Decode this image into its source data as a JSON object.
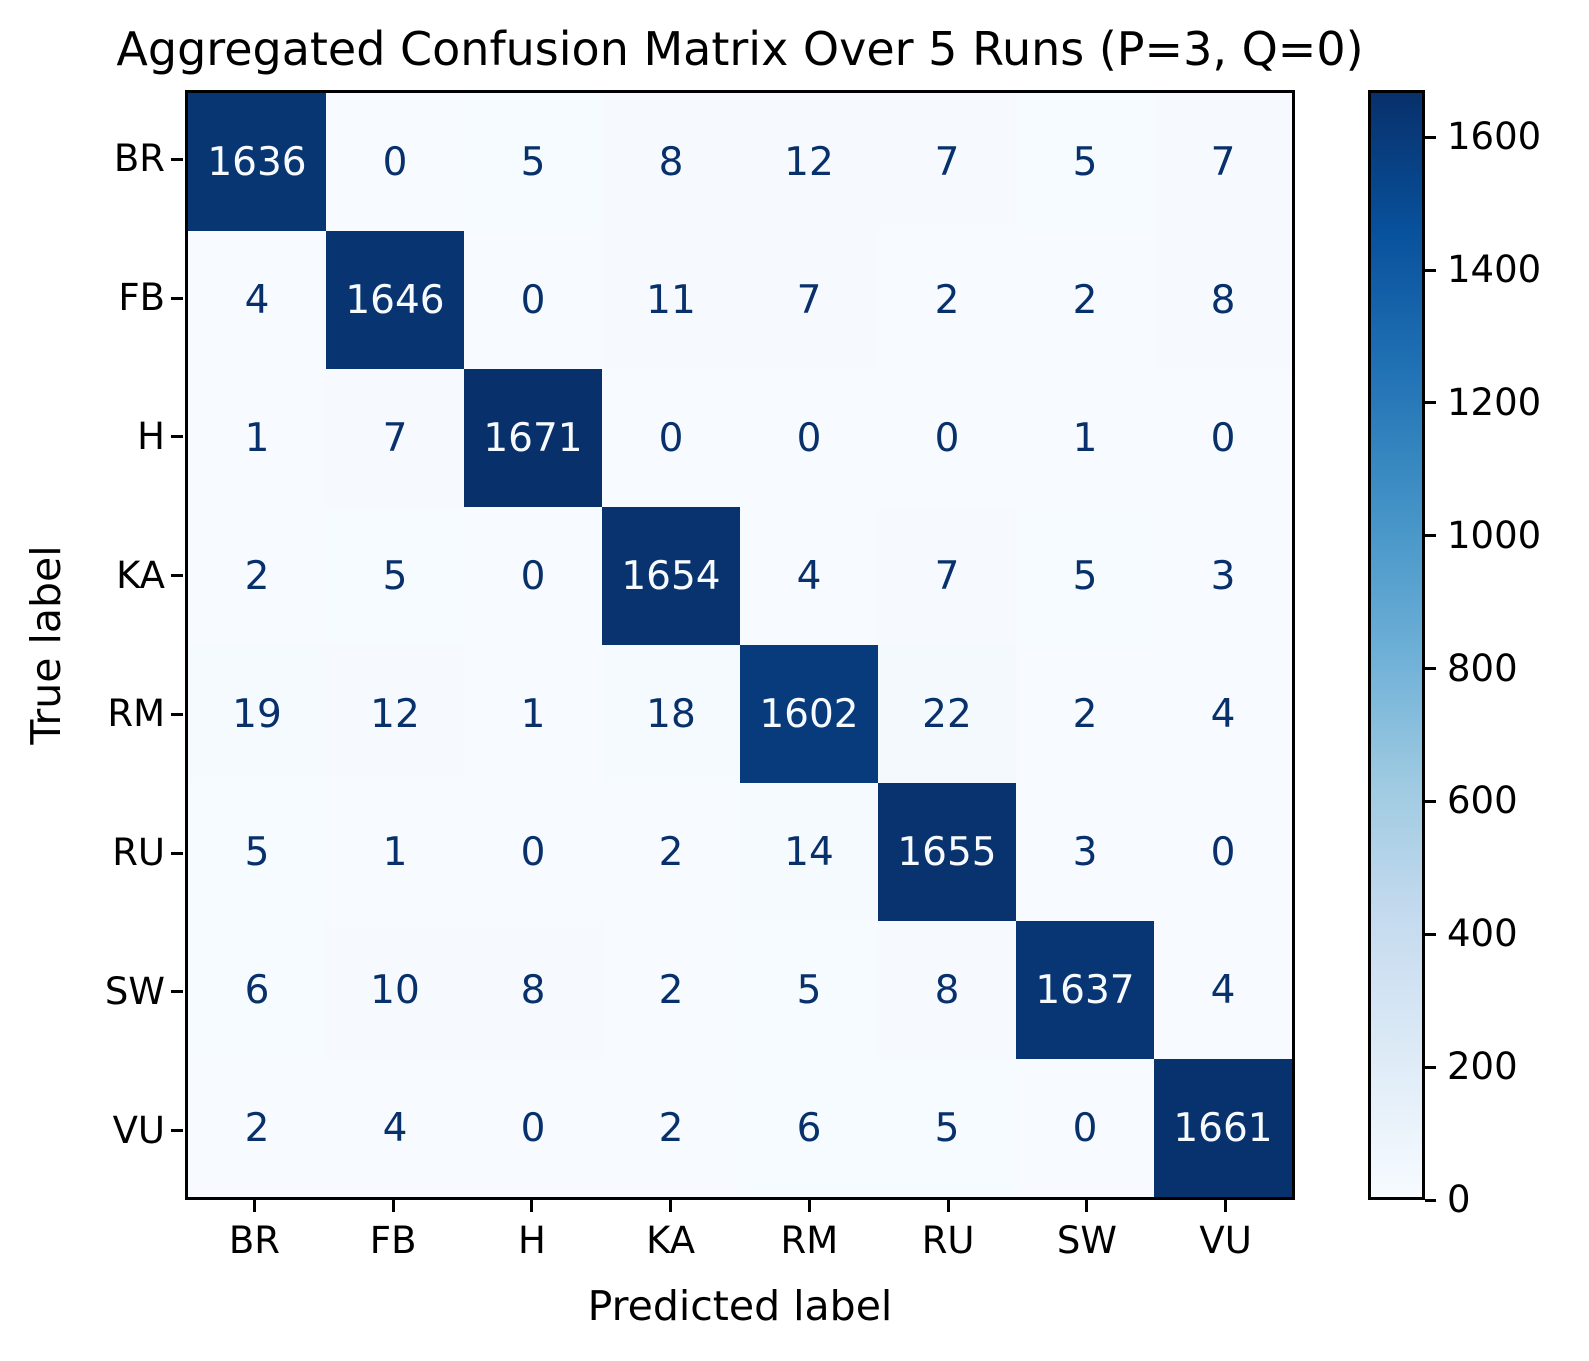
{
  "chart_data": {
    "type": "heatmap",
    "title": "Aggregated Confusion Matrix Over 5 Runs (P=3, Q=0)",
    "xlabel": "Predicted label",
    "ylabel": "True label",
    "categories": [
      "BR",
      "FB",
      "H",
      "KA",
      "RM",
      "RU",
      "SW",
      "VU"
    ],
    "matrix": [
      [
        1636,
        0,
        5,
        8,
        12,
        7,
        5,
        7
      ],
      [
        4,
        1646,
        0,
        11,
        7,
        2,
        2,
        8
      ],
      [
        1,
        7,
        1671,
        0,
        0,
        0,
        1,
        0
      ],
      [
        2,
        5,
        0,
        1654,
        4,
        7,
        5,
        3
      ],
      [
        19,
        12,
        1,
        18,
        1602,
        22,
        2,
        4
      ],
      [
        5,
        1,
        0,
        2,
        14,
        1655,
        3,
        0
      ],
      [
        6,
        10,
        8,
        2,
        5,
        8,
        1637,
        4
      ],
      [
        2,
        4,
        0,
        2,
        6,
        5,
        0,
        1661
      ]
    ],
    "vmin": 0,
    "vmax": 1671,
    "colormap": "Blues",
    "colormap_stops": [
      "#f7fbff",
      "#deebf7",
      "#c6dbef",
      "#9ecae1",
      "#6baed6",
      "#4292c6",
      "#2171b5",
      "#08519c",
      "#08306b"
    ],
    "colorbar_ticks": [
      0,
      200,
      400,
      600,
      800,
      1000,
      1200,
      1400,
      1600
    ],
    "annotation_colors": {
      "on_light_cells": "#08306b",
      "on_dark_cells": "#f7fbff"
    },
    "layout": {
      "grid": "off",
      "colorbar_position": "right",
      "axes_border_color": "#000000"
    }
  }
}
